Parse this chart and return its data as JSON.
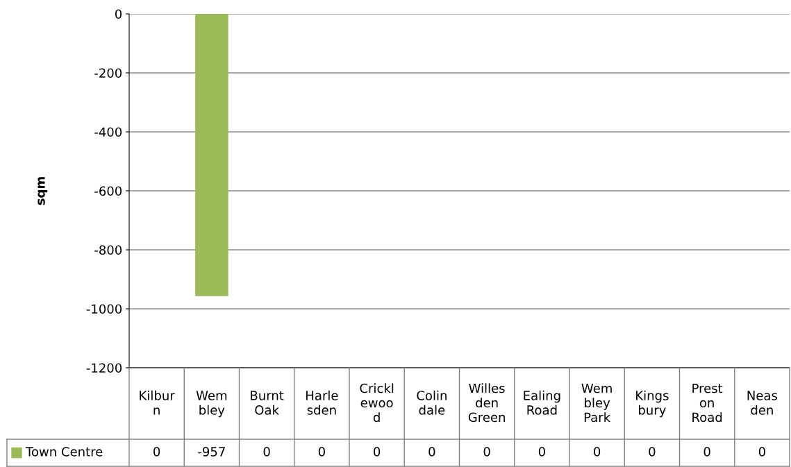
{
  "chart_data": {
    "type": "bar",
    "ylabel": "sqm",
    "categories": [
      "Kilbur\nn",
      "Wem\nbley",
      "Burnt\nOak",
      "Harle\nsden",
      "Crickl\newoo\nd",
      "Colin\ndale",
      "Willes\nden\nGreen",
      "Ealing\nRoad",
      "Wem\nbley\nPark",
      "Kings\nbury",
      "Prest\non\nRoad",
      "Neas\nden"
    ],
    "series": [
      {
        "name": "Town Centre",
        "color": "#9bbb59",
        "values": [
          0,
          -957,
          0,
          0,
          0,
          0,
          0,
          0,
          0,
          0,
          0,
          0
        ]
      }
    ],
    "ylim": [
      -1200,
      0
    ],
    "yticks": [
      0,
      -200,
      -400,
      -600,
      -800,
      -1000,
      -1200
    ],
    "grid": "y",
    "legend": "bottom",
    "data_labels": true
  }
}
